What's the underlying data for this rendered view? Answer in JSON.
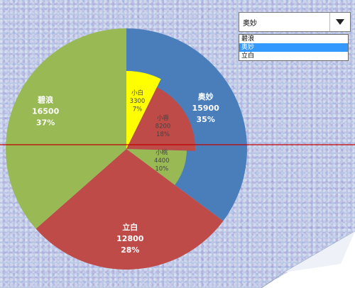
{
  "chart_data": {
    "type": "pie",
    "outer": [
      {
        "name": "奥妙",
        "value": 15900,
        "percent": "35%",
        "color": "#4a7ebb"
      },
      {
        "name": "立白",
        "value": 12800,
        "percent": "28%",
        "color": "#be4b48"
      },
      {
        "name": "碧浪",
        "value": 16500,
        "percent": "37%",
        "color": "#98b954"
      }
    ],
    "inner": [
      {
        "name": "小白",
        "value": 3300,
        "percent": "7%",
        "color": "#ffff00"
      },
      {
        "name": "小蓉",
        "value": 8200,
        "percent": "18%",
        "color": "#be4b48"
      },
      {
        "name": "小桃",
        "value": 4400,
        "percent": "10%",
        "color": "#98b954"
      }
    ],
    "reference_line_color": "#c00000"
  },
  "dropdown": {
    "selected": "奥妙",
    "options": [
      "碧浪",
      "奥妙",
      "立白"
    ]
  }
}
